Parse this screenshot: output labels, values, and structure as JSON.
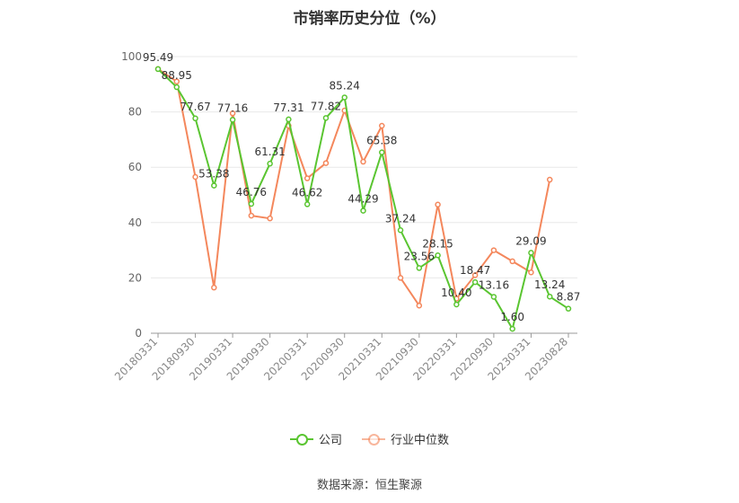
{
  "title": "市销率历史分位（%）",
  "source": "数据来源：恒生聚源",
  "colors": {
    "company": "#5ac531",
    "industry": "#f4875c",
    "grid": "#e8e8e8",
    "axis": "#999999",
    "text": "#333333"
  },
  "chart_data": {
    "type": "line",
    "title": "市销率历史分位（%）",
    "xlabel": "",
    "ylabel": "",
    "ylim": [
      0,
      100
    ],
    "yticks": [
      0,
      20,
      40,
      60,
      80,
      100
    ],
    "grid": true,
    "legend_position": "bottom",
    "x": [
      "20180331",
      "20180630",
      "20180930",
      "20181231",
      "20190331",
      "20190630",
      "20190930",
      "20191231",
      "20200331",
      "20200630",
      "20200930",
      "20201231",
      "20210331",
      "20210630",
      "20210930",
      "20211231",
      "20220331",
      "20220630",
      "20220930",
      "20221231",
      "20230331",
      "20230630",
      "20230828"
    ],
    "x_tick_labels": [
      "20180331",
      "20180930",
      "20190331",
      "20190930",
      "20200331",
      "20200930",
      "20210331",
      "20210930",
      "20220331",
      "20220930",
      "20230331",
      "20230828"
    ],
    "series": [
      {
        "name": "公司",
        "values": [
          95.49,
          88.95,
          77.67,
          53.38,
          77.16,
          46.76,
          61.31,
          77.31,
          46.62,
          77.82,
          85.24,
          44.29,
          65.38,
          37.24,
          23.56,
          28.15,
          10.4,
          18.47,
          13.16,
          1.6,
          29.09,
          13.24,
          8.87
        ],
        "labels": [
          "95.49",
          "88.95",
          "77.67",
          "53.38",
          "77.16",
          "46.76",
          "61.31",
          "77.31",
          "46.62",
          "77.82",
          "85.24",
          "44.29",
          "65.38",
          "37.24",
          "23.56",
          "28.15",
          "10.40",
          "18.47",
          "13.16",
          "1.60",
          "29.09",
          "13.24",
          "8.87"
        ]
      },
      {
        "name": "行业中位数",
        "values": [
          95.5,
          91.0,
          56.5,
          16.5,
          79.5,
          42.5,
          41.5,
          75.0,
          56.0,
          61.5,
          80.5,
          62.0,
          75.0,
          20.0,
          10.0,
          46.5,
          12.5,
          21.0,
          30.0,
          26.0,
          22.0,
          55.5,
          null
        ]
      }
    ]
  },
  "legend": [
    {
      "label": "公司",
      "color": "#5ac531"
    },
    {
      "label": "行业中位数",
      "color": "#f4875c"
    }
  ]
}
